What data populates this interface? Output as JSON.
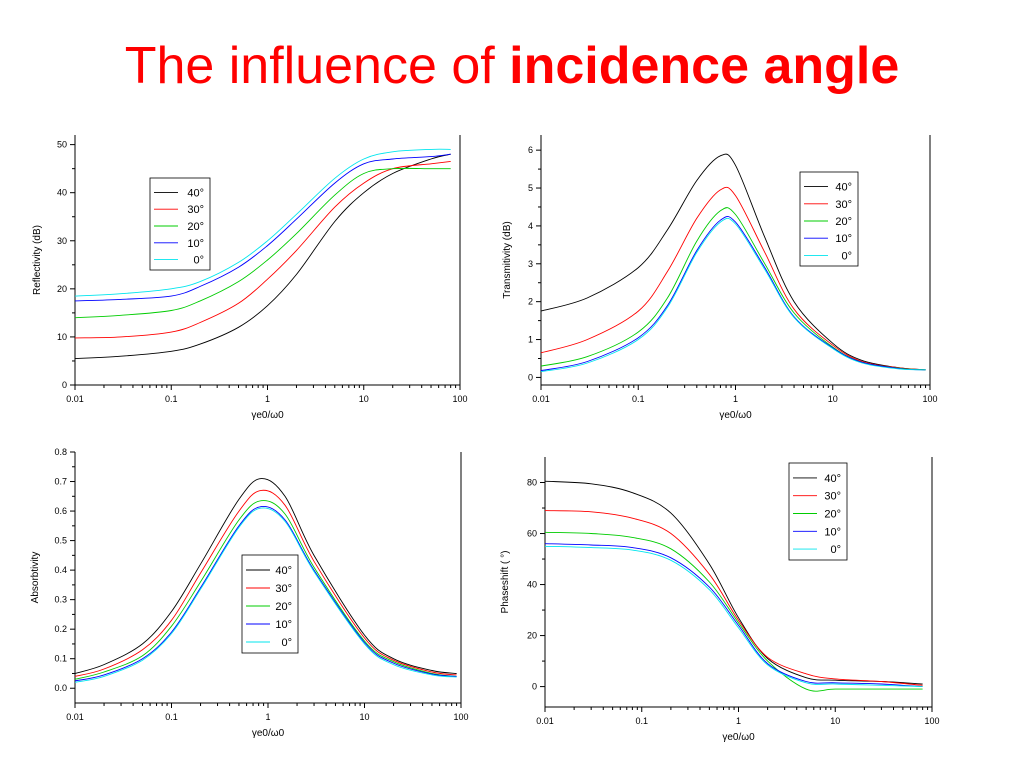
{
  "title": {
    "prefix": "The influence of ",
    "emphasis": "incidence angle",
    "color": "#ff0000"
  },
  "legend_colors": {
    "40°": "#000000",
    "30°": "#ff0000",
    "20°": "#00cc00",
    "10°": "#0000ff",
    "0°": "#00e5ee"
  },
  "chart_data": [
    {
      "type": "line",
      "ylabel": "Reflectivity (dB)",
      "xlabel": "γe0/ω0",
      "xscale": "log",
      "xlim": [
        0.01,
        100
      ],
      "ylim": [
        0,
        52
      ],
      "xticks": [
        0.01,
        0.1,
        1,
        10,
        100
      ],
      "xtick_labels": [
        "0.01",
        "0.1",
        "1",
        "10",
        "100"
      ],
      "yticks": [
        0,
        10,
        20,
        30,
        40,
        50
      ],
      "ytick_labels": [
        "0",
        "10",
        "20",
        "30",
        "40",
        "50"
      ],
      "legend_placement": "upper-left",
      "series": [
        {
          "name": "40°",
          "x": [
            0.01,
            0.03,
            0.1,
            0.2,
            0.5,
            1,
            2,
            5,
            10,
            20,
            50,
            80
          ],
          "y": [
            5.5,
            6,
            7,
            8.5,
            12,
            16.5,
            23,
            34,
            40,
            44,
            47,
            48
          ]
        },
        {
          "name": "30°",
          "x": [
            0.01,
            0.03,
            0.1,
            0.2,
            0.5,
            1,
            2,
            5,
            10,
            20,
            50,
            80
          ],
          "y": [
            9.8,
            10,
            11,
            13,
            17,
            22,
            28,
            37,
            42,
            45,
            46,
            46.5
          ]
        },
        {
          "name": "20°",
          "x": [
            0.01,
            0.03,
            0.1,
            0.2,
            0.5,
            1,
            2,
            5,
            10,
            20,
            50,
            80
          ],
          "y": [
            14,
            14.5,
            15.5,
            17.5,
            21.5,
            26,
            31.5,
            39.5,
            44,
            45,
            45,
            45
          ]
        },
        {
          "name": "10°",
          "x": [
            0.01,
            0.03,
            0.1,
            0.2,
            0.5,
            1,
            2,
            5,
            10,
            20,
            50,
            80
          ],
          "y": [
            17.5,
            17.8,
            18.5,
            20.5,
            24.5,
            29,
            34.5,
            42,
            46,
            47,
            47.5,
            48
          ]
        },
        {
          "name": "0°",
          "x": [
            0.01,
            0.03,
            0.1,
            0.2,
            0.5,
            1,
            2,
            5,
            10,
            20,
            50,
            80
          ],
          "y": [
            18.5,
            19,
            20,
            21.5,
            25.5,
            30,
            35.5,
            43,
            47,
            48.5,
            49,
            49
          ]
        }
      ]
    },
    {
      "type": "line",
      "ylabel": "Transmitivity (dB)",
      "xlabel": "γe0/ω0",
      "xscale": "log",
      "xlim": [
        0.01,
        100
      ],
      "ylim": [
        -0.2,
        6.4
      ],
      "xticks": [
        0.01,
        0.1,
        1,
        10,
        100
      ],
      "xtick_labels": [
        "0.01",
        "0.1",
        "1",
        "10",
        "100"
      ],
      "yticks": [
        0,
        1,
        2,
        3,
        4,
        5,
        6
      ],
      "ytick_labels": [
        "0",
        "1",
        "2",
        "3",
        "4",
        "5",
        "6"
      ],
      "legend_placement": "upper-right",
      "series": [
        {
          "name": "40°",
          "x": [
            0.01,
            0.03,
            0.1,
            0.2,
            0.4,
            0.7,
            1,
            2,
            4,
            10,
            20,
            50,
            90
          ],
          "y": [
            1.75,
            2.1,
            2.9,
            3.9,
            5.2,
            5.85,
            5.6,
            3.7,
            2,
            0.9,
            0.45,
            0.25,
            0.2
          ]
        },
        {
          "name": "30°",
          "x": [
            0.01,
            0.03,
            0.1,
            0.2,
            0.4,
            0.7,
            1,
            2,
            4,
            10,
            20,
            50,
            90
          ],
          "y": [
            0.65,
            1,
            1.75,
            2.8,
            4.2,
            4.95,
            4.8,
            3.3,
            1.8,
            0.85,
            0.42,
            0.25,
            0.2
          ]
        },
        {
          "name": "20°",
          "x": [
            0.01,
            0.03,
            0.1,
            0.2,
            0.4,
            0.7,
            1,
            2,
            4,
            10,
            20,
            50,
            90
          ],
          "y": [
            0.3,
            0.55,
            1.2,
            2.1,
            3.6,
            4.4,
            4.3,
            3,
            1.7,
            0.8,
            0.4,
            0.24,
            0.2
          ]
        },
        {
          "name": "10°",
          "x": [
            0.01,
            0.03,
            0.1,
            0.2,
            0.4,
            0.7,
            1,
            2,
            4,
            10,
            20,
            50,
            90
          ],
          "y": [
            0.18,
            0.42,
            1.05,
            1.9,
            3.35,
            4.15,
            4.1,
            2.9,
            1.6,
            0.78,
            0.4,
            0.23,
            0.2
          ]
        },
        {
          "name": "0°",
          "x": [
            0.01,
            0.03,
            0.1,
            0.2,
            0.4,
            0.7,
            1,
            2,
            4,
            10,
            20,
            50,
            90
          ],
          "y": [
            0.15,
            0.38,
            1,
            1.85,
            3.3,
            4.1,
            4.05,
            2.85,
            1.58,
            0.76,
            0.38,
            0.22,
            0.2
          ]
        }
      ]
    },
    {
      "type": "line",
      "ylabel": "Absorbtivity",
      "xlabel": "γe0/ω0",
      "xscale": "log",
      "xlim": [
        0.01,
        100
      ],
      "ylim": [
        -0.05,
        0.8
      ],
      "xticks": [
        0.01,
        0.1,
        1,
        10,
        100
      ],
      "xtick_labels": [
        "0.01",
        "0.1",
        "1",
        "10",
        "100"
      ],
      "yticks": [
        0,
        0.1,
        0.2,
        0.3,
        0.4,
        0.5,
        0.6,
        0.7,
        0.8
      ],
      "ytick_labels": [
        "0.0",
        "0.1",
        "0.2",
        "0.3",
        "0.4",
        "0.5",
        "0.6",
        "0.7",
        "0.8"
      ],
      "legend_placement": "lower-center",
      "series": [
        {
          "name": "40°",
          "x": [
            0.01,
            0.02,
            0.05,
            0.1,
            0.2,
            0.5,
            0.85,
            1.5,
            3,
            10,
            20,
            50,
            90
          ],
          "y": [
            0.05,
            0.08,
            0.15,
            0.26,
            0.42,
            0.64,
            0.71,
            0.65,
            0.45,
            0.18,
            0.1,
            0.06,
            0.05
          ]
        },
        {
          "name": "30°",
          "x": [
            0.01,
            0.02,
            0.05,
            0.1,
            0.2,
            0.5,
            0.85,
            1.5,
            3,
            10,
            20,
            50,
            90
          ],
          "y": [
            0.04,
            0.065,
            0.13,
            0.23,
            0.39,
            0.6,
            0.67,
            0.62,
            0.43,
            0.17,
            0.095,
            0.055,
            0.045
          ]
        },
        {
          "name": "20°",
          "x": [
            0.01,
            0.02,
            0.05,
            0.1,
            0.2,
            0.5,
            0.85,
            1.5,
            3,
            10,
            20,
            50,
            90
          ],
          "y": [
            0.03,
            0.055,
            0.11,
            0.21,
            0.36,
            0.57,
            0.635,
            0.59,
            0.41,
            0.16,
            0.09,
            0.05,
            0.04
          ]
        },
        {
          "name": "10°",
          "x": [
            0.01,
            0.02,
            0.05,
            0.1,
            0.2,
            0.5,
            0.85,
            1.5,
            3,
            10,
            20,
            50,
            90
          ],
          "y": [
            0.025,
            0.045,
            0.1,
            0.19,
            0.34,
            0.55,
            0.615,
            0.57,
            0.4,
            0.155,
            0.085,
            0.048,
            0.04
          ]
        },
        {
          "name": "0°",
          "x": [
            0.01,
            0.02,
            0.05,
            0.1,
            0.2,
            0.5,
            0.85,
            1.5,
            3,
            10,
            20,
            50,
            90
          ],
          "y": [
            0.02,
            0.04,
            0.095,
            0.185,
            0.335,
            0.545,
            0.61,
            0.565,
            0.395,
            0.15,
            0.08,
            0.045,
            0.038
          ]
        }
      ]
    },
    {
      "type": "line",
      "ylabel": "Phaseshift ( °)",
      "xlabel": "γe0/ω0",
      "xscale": "log",
      "xlim": [
        0.01,
        100
      ],
      "ylim": [
        -8,
        90
      ],
      "xticks": [
        0.01,
        0.1,
        1,
        10,
        100
      ],
      "xtick_labels": [
        "0.01",
        "0.1",
        "1",
        "10",
        "100"
      ],
      "yticks": [
        0,
        20,
        40,
        60,
        80
      ],
      "ytick_labels": [
        "0",
        "20",
        "40",
        "60",
        "80"
      ],
      "legend_placement": "upper-right",
      "series": [
        {
          "name": "40°",
          "x": [
            0.01,
            0.03,
            0.08,
            0.2,
            0.5,
            1,
            2,
            5,
            10,
            30,
            80
          ],
          "y": [
            80.5,
            79.5,
            76,
            68,
            48,
            27,
            11,
            3.5,
            2.5,
            2,
            1
          ]
        },
        {
          "name": "30°",
          "x": [
            0.01,
            0.03,
            0.08,
            0.2,
            0.5,
            1,
            2,
            5,
            10,
            30,
            80
          ],
          "y": [
            69,
            68.5,
            66,
            60,
            44,
            26,
            11.5,
            5,
            3,
            2,
            0.5
          ]
        },
        {
          "name": "20°",
          "x": [
            0.01,
            0.03,
            0.08,
            0.2,
            0.5,
            1,
            2,
            5,
            10,
            30,
            80
          ],
          "y": [
            60.5,
            60,
            58.5,
            54,
            41,
            25,
            10,
            -1,
            -1,
            -1,
            -1
          ]
        },
        {
          "name": "10°",
          "x": [
            0.01,
            0.03,
            0.08,
            0.2,
            0.5,
            1,
            2,
            5,
            10,
            30,
            80
          ],
          "y": [
            56,
            55.5,
            54.5,
            50.5,
            39,
            24,
            9,
            2,
            1.5,
            1,
            0
          ]
        },
        {
          "name": "0°",
          "x": [
            0.01,
            0.03,
            0.08,
            0.2,
            0.5,
            1,
            2,
            5,
            10,
            30,
            80
          ],
          "y": [
            55,
            54.5,
            53.5,
            49.5,
            38,
            23,
            8.5,
            1.5,
            1,
            0.5,
            0
          ]
        }
      ]
    }
  ]
}
